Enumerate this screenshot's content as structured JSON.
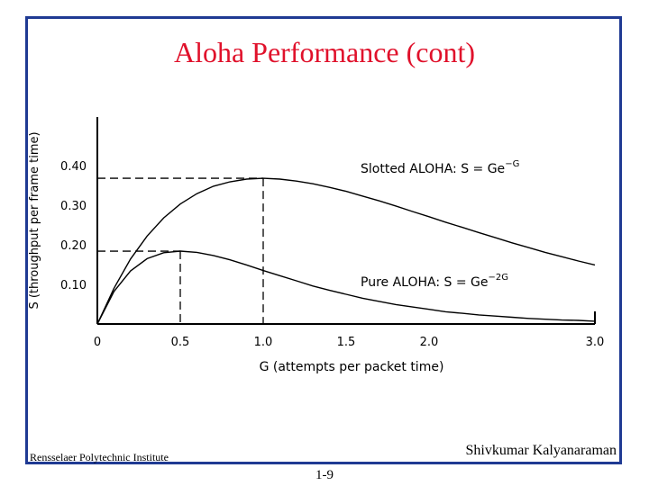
{
  "slide": {
    "title": "Aloha Performance (cont)",
    "institution": "Rensselaer Polytechnic Institute",
    "author": "Shivkumar Kalyanaraman",
    "page_number": "1-9"
  },
  "colors": {
    "title": "#e0112b",
    "frame": "#1f3a93",
    "curves": "#000000"
  },
  "chart_data": {
    "type": "line",
    "title": "",
    "xlabel": "G (attempts per packet time)",
    "ylabel": "S (throughput per frame time)",
    "xlim": [
      0,
      3.0
    ],
    "ylim": [
      0,
      0.5
    ],
    "x_ticks": [
      {
        "value": 0,
        "label": "0"
      },
      {
        "value": 0.5,
        "label": "0.5"
      },
      {
        "value": 1.0,
        "label": "1.0"
      },
      {
        "value": 1.5,
        "label": "1.5"
      },
      {
        "value": 2.0,
        "label": "2.0"
      },
      {
        "value": 3.0,
        "label": "3.0"
      }
    ],
    "y_ticks": [
      {
        "value": 0.1,
        "label": "0.10"
      },
      {
        "value": 0.2,
        "label": "0.20"
      },
      {
        "value": 0.3,
        "label": "0.30"
      },
      {
        "value": 0.4,
        "label": "0.40"
      }
    ],
    "x": [
      0,
      0.1,
      0.2,
      0.3,
      0.4,
      0.5,
      0.6,
      0.7,
      0.8,
      0.9,
      1.0,
      1.1,
      1.2,
      1.3,
      1.4,
      1.5,
      1.6,
      1.7,
      1.8,
      1.9,
      2.0,
      2.1,
      2.2,
      2.3,
      2.4,
      2.5,
      2.6,
      2.7,
      2.8,
      2.9,
      3.0
    ],
    "series": [
      {
        "name": "Slotted ALOHA: S = Ge^-G",
        "label_text": "Slotted ALOHA: S = Ge",
        "label_exp": "−G",
        "values": [
          0,
          0.09,
          0.164,
          0.222,
          0.268,
          0.303,
          0.329,
          0.348,
          0.359,
          0.366,
          0.368,
          0.366,
          0.361,
          0.354,
          0.345,
          0.335,
          0.323,
          0.311,
          0.298,
          0.284,
          0.271,
          0.257,
          0.244,
          0.231,
          0.218,
          0.205,
          0.193,
          0.181,
          0.17,
          0.159,
          0.149
        ]
      },
      {
        "name": "Pure ALOHA: S = Ge^-2G",
        "label_text": "Pure ALOHA: S = Ge",
        "label_exp": "−2G",
        "values": [
          0,
          0.082,
          0.134,
          0.165,
          0.18,
          0.184,
          0.181,
          0.173,
          0.162,
          0.149,
          0.135,
          0.122,
          0.109,
          0.096,
          0.085,
          0.075,
          0.065,
          0.057,
          0.049,
          0.043,
          0.037,
          0.031,
          0.027,
          0.023,
          0.02,
          0.017,
          0.014,
          0.012,
          0.01,
          0.009,
          0.007
        ]
      }
    ],
    "reference_lines": [
      {
        "x": 1.0,
        "y": 0.368
      },
      {
        "x": 0.5,
        "y": 0.184
      }
    ],
    "grid": false,
    "legend": "inline labels"
  }
}
